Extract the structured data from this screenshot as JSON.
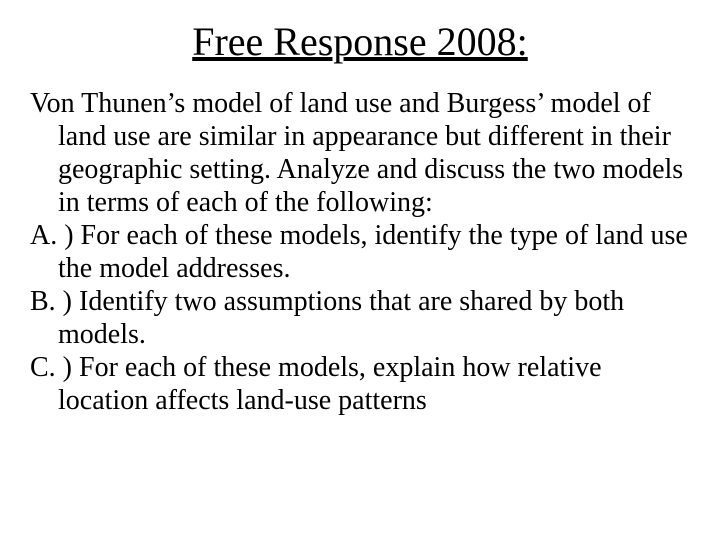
{
  "title": "Free Response 2008:",
  "intro": "Von Thunen’s model of land use and Burgess’ model of land use are similar in appearance but different in their geographic setting. Analyze and discuss the two models in terms of each of the following:",
  "items": {
    "a": "A. ) For each of these models, identify the type of land use the model addresses.",
    "b": "B. ) Identify two assumptions that are shared by both models.",
    "c": "C. ) For each of these models, explain how relative location affects land-use patterns"
  },
  "colors": {
    "background": "#ffffff",
    "text": "#000000"
  },
  "typography": {
    "family": "Times New Roman",
    "title_fontsize": 40,
    "body_fontsize": 28,
    "title_underline": true
  }
}
